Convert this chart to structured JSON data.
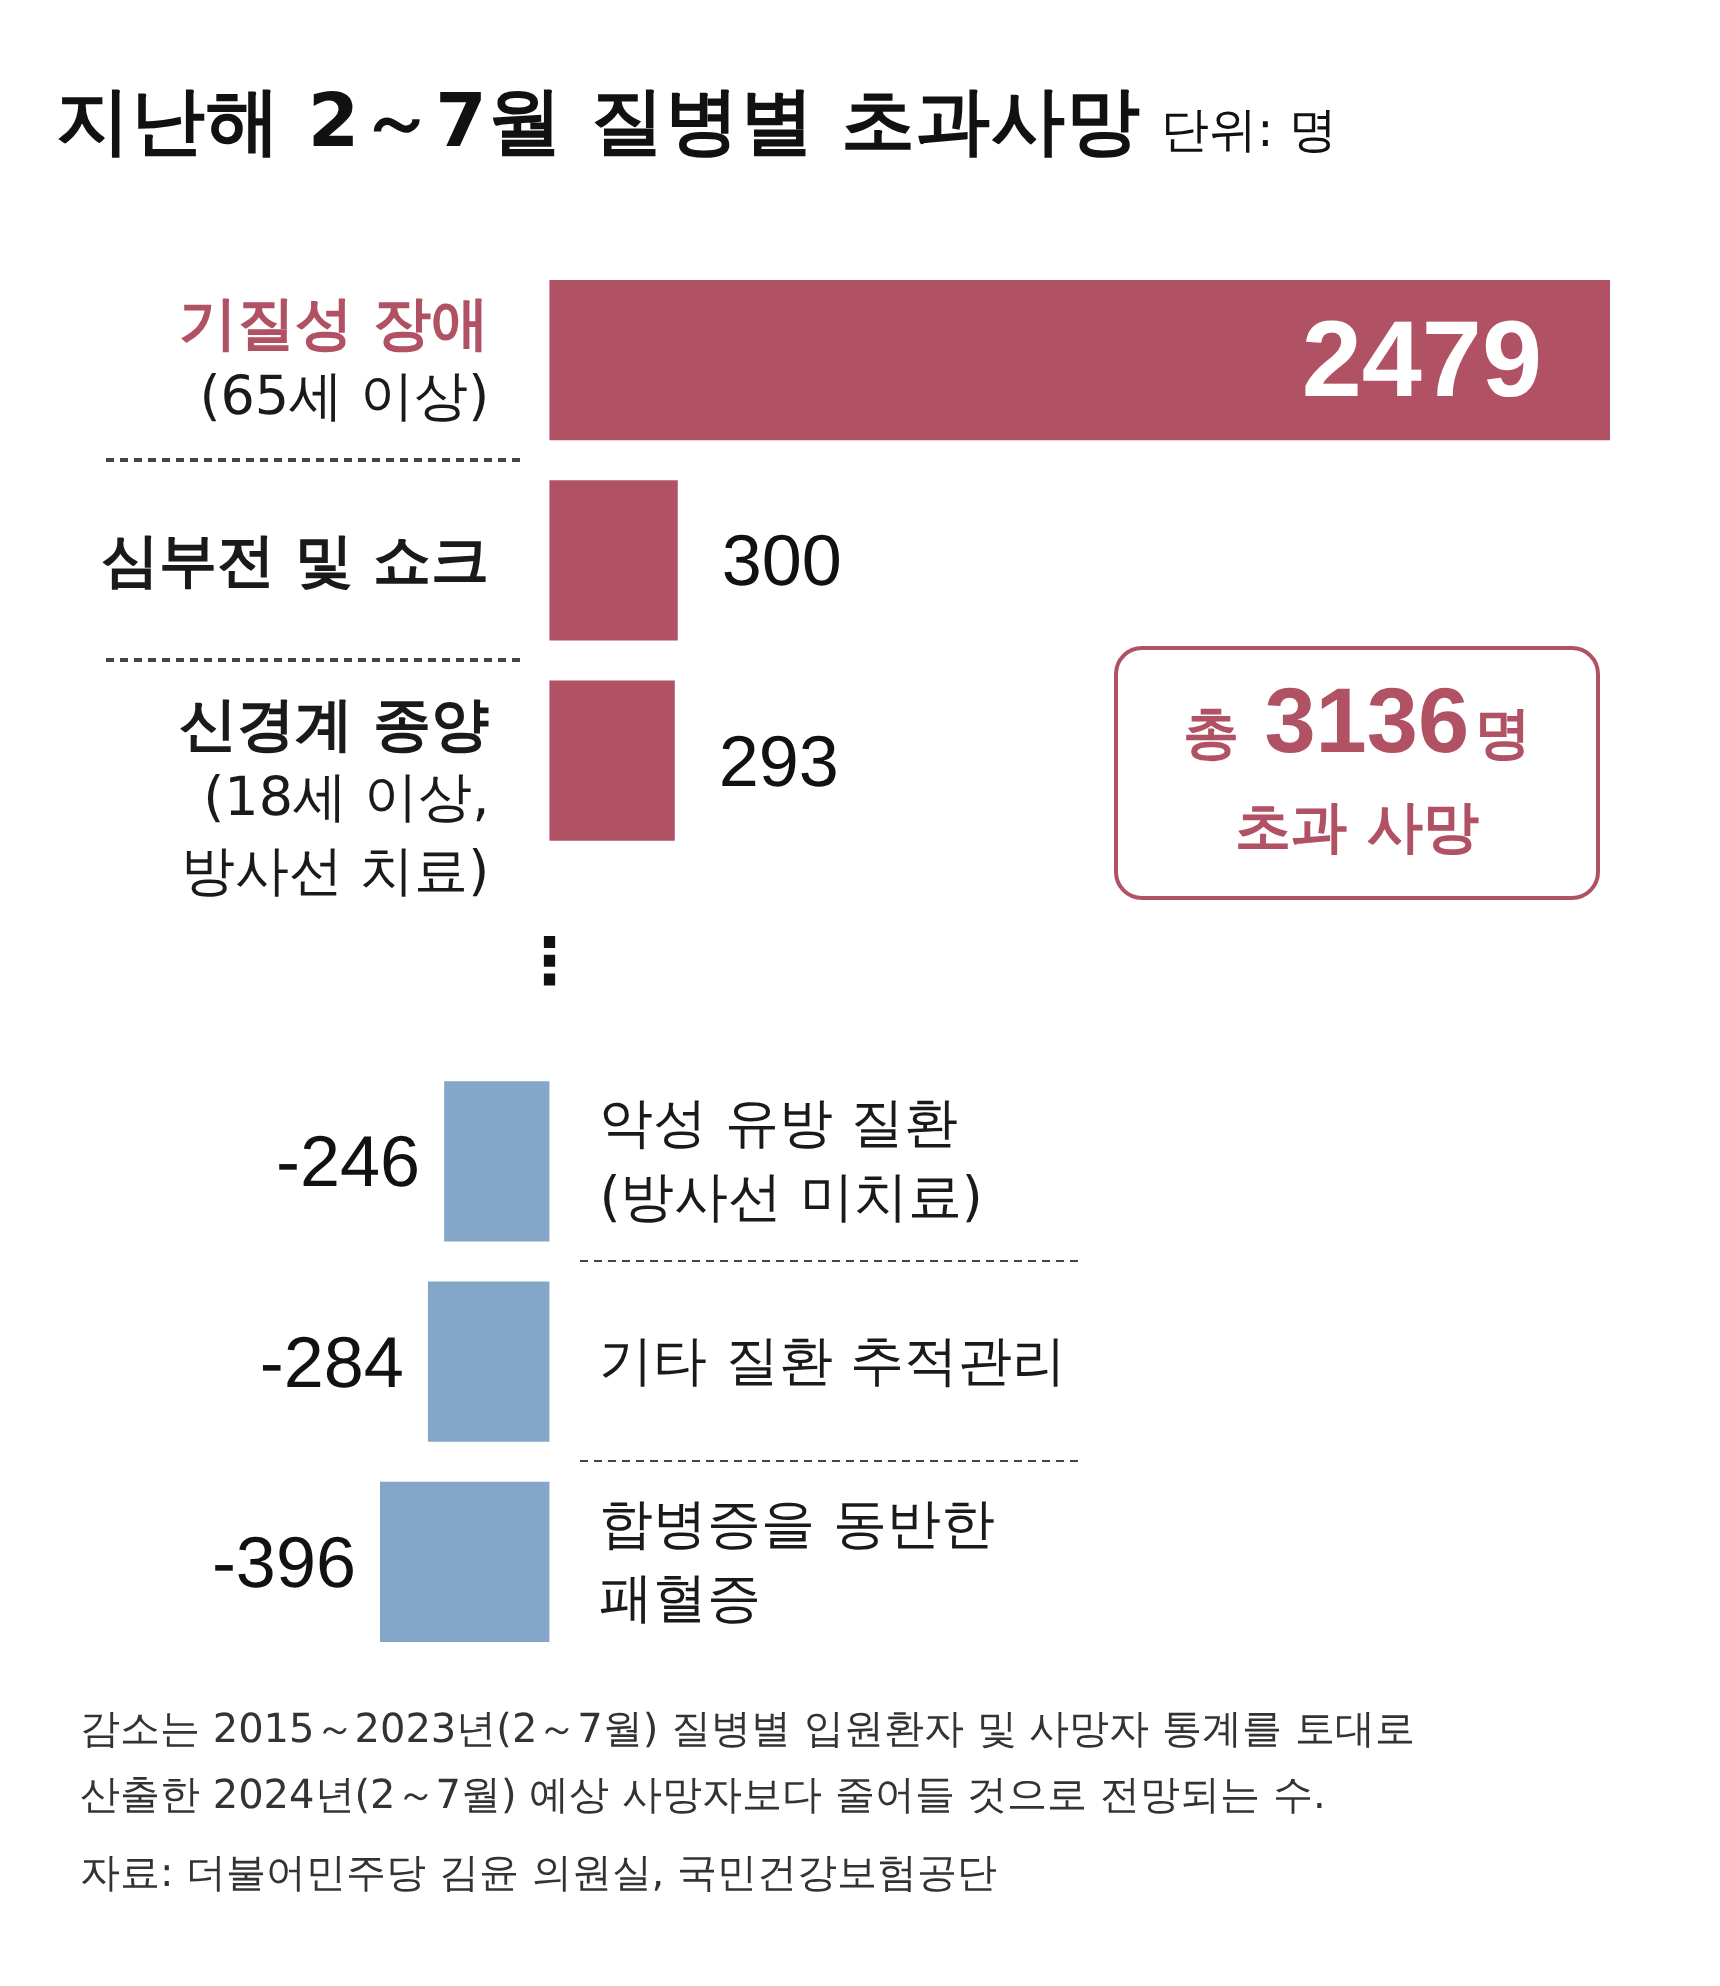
{
  "chart_data": {
    "type": "bar",
    "orientation": "horizontal",
    "title": "지난해 2～7월 질병별 초과사망",
    "subtitle": "단위: 명",
    "categories": [
      "기질성 장애\n(65세 이상)",
      "심부전 및 쇼크",
      "신경계 종양\n(18세 이상,\n방사선 치료)",
      "⋮",
      "악성 유방 질환\n(방사선 미치료)",
      "기타 질환 추적관리",
      "합병증을 동반한\n패혈증"
    ],
    "values": [
      2479,
      300,
      293,
      null,
      -246,
      -284,
      -396
    ],
    "colors": [
      "#b05263",
      "#b05263",
      "#b05263",
      null,
      "#84a6c8",
      "#84a6c8",
      "#84a6c8"
    ],
    "data_labels": true,
    "tick_labels": "y",
    "annotations": [
      "총 3136명\n초과 사망",
      "감소는 2015～2023년(2～7월) 질병별 입원환자 및 사망자 통계를 토대로\n산출한 2024년(2～7월) 예상 사망자보다 줄어들 것으로 전망되는 수.",
      "자료: 더불어민주당 김윤 의원실, 국민건강보험공단"
    ]
  }
}
